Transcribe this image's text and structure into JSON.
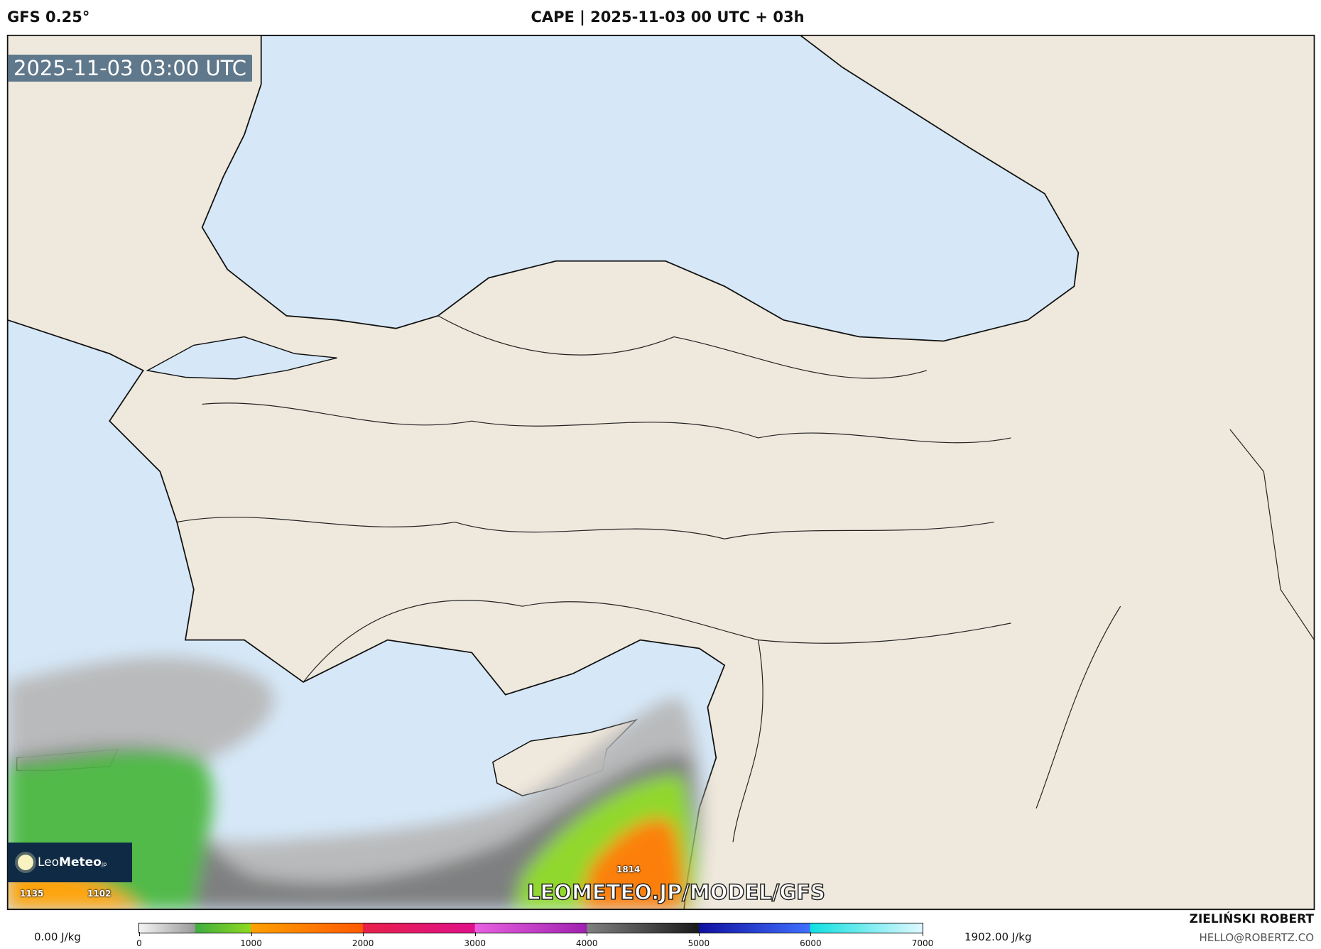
{
  "header": {
    "model": "GFS 0.25°",
    "title": "CAPE | 2025-11-03 00 UTC + 03h"
  },
  "map": {
    "timestamp": "2025-11-03 03:00 UTC",
    "watermark": "LEOMETEO.JP/MODEL/GFS",
    "point_labels": [
      "1135",
      "1102",
      "1814"
    ],
    "colors": {
      "land": "#efe8dc",
      "water": "#d6e8f8",
      "border": "#222222"
    }
  },
  "logo": {
    "text_light": "Leo",
    "text_bold": "Meteo",
    "suffix": "jp",
    "icon": "sun-icon"
  },
  "colorbar": {
    "min_label": "0.00 J/kg",
    "max_label": "1902.00 J/kg",
    "ticks": [
      "0",
      "1000",
      "2000",
      "3000",
      "4000",
      "5000",
      "6000",
      "7000"
    ]
  },
  "credit": {
    "author": "ZIELIŃSKI ROBERT",
    "email": "HELLO@ROBERTZ.CO"
  }
}
